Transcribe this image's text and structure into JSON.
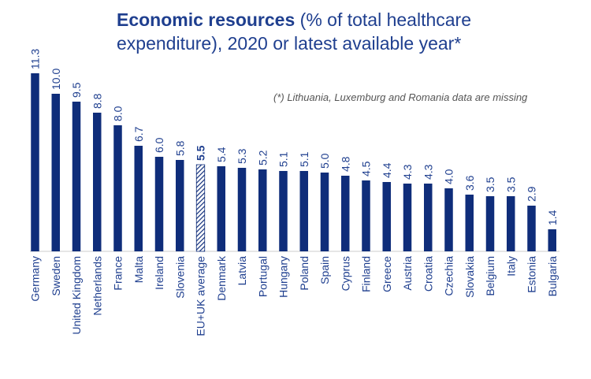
{
  "title": {
    "bold": "Economic resources",
    "line1_rest": " (% of total healthcare",
    "line2": "expenditure), 2020 or latest available year*"
  },
  "note": "(*) Lithuania, Luxemburg and Romania data are missing",
  "colors": {
    "bar": "#0f2d7a",
    "text": "#1f3f8f",
    "note": "#555555",
    "axis": "#cccccc"
  },
  "chart_data": {
    "type": "bar",
    "title": "Economic resources (% of total healthcare expenditure), 2020 or latest available year*",
    "xlabel": "",
    "ylabel": "",
    "ylim": [
      0,
      11.3
    ],
    "grid": false,
    "categories": [
      "Germany",
      "Sweden",
      "United Kingdom",
      "Netherlands",
      "France",
      "Malta",
      "Ireland",
      "Slovenia",
      "EU+UK average",
      "Denmark",
      "Latvia",
      "Portugal",
      "Hungary",
      "Poland",
      "Spain",
      "Cyprus",
      "Finland",
      "Greece",
      "Austria",
      "Croatia",
      "Czechia",
      "Slovakia",
      "Belgium",
      "Italy",
      "Estonia",
      "Bulgaria"
    ],
    "values": [
      11.3,
      10.0,
      9.5,
      8.8,
      8.0,
      6.7,
      6.0,
      5.8,
      5.5,
      5.4,
      5.3,
      5.2,
      5.1,
      5.1,
      5.0,
      4.8,
      4.5,
      4.4,
      4.3,
      4.3,
      4.0,
      3.6,
      3.5,
      3.5,
      2.9,
      1.4
    ],
    "value_labels": [
      "11.3",
      "10.0",
      "9.5",
      "8.8",
      "8.0",
      "6.7",
      "6.0",
      "5.8",
      "5.5",
      "5.4",
      "5.3",
      "5.2",
      "5.1",
      "5.1",
      "5.0",
      "4.8",
      "4.5",
      "4.4",
      "4.3",
      "4.3",
      "4.0",
      "3.6",
      "3.5",
      "3.5",
      "2.9",
      "1.4"
    ],
    "highlight": "EU+UK average",
    "highlight_style": "hatched"
  }
}
